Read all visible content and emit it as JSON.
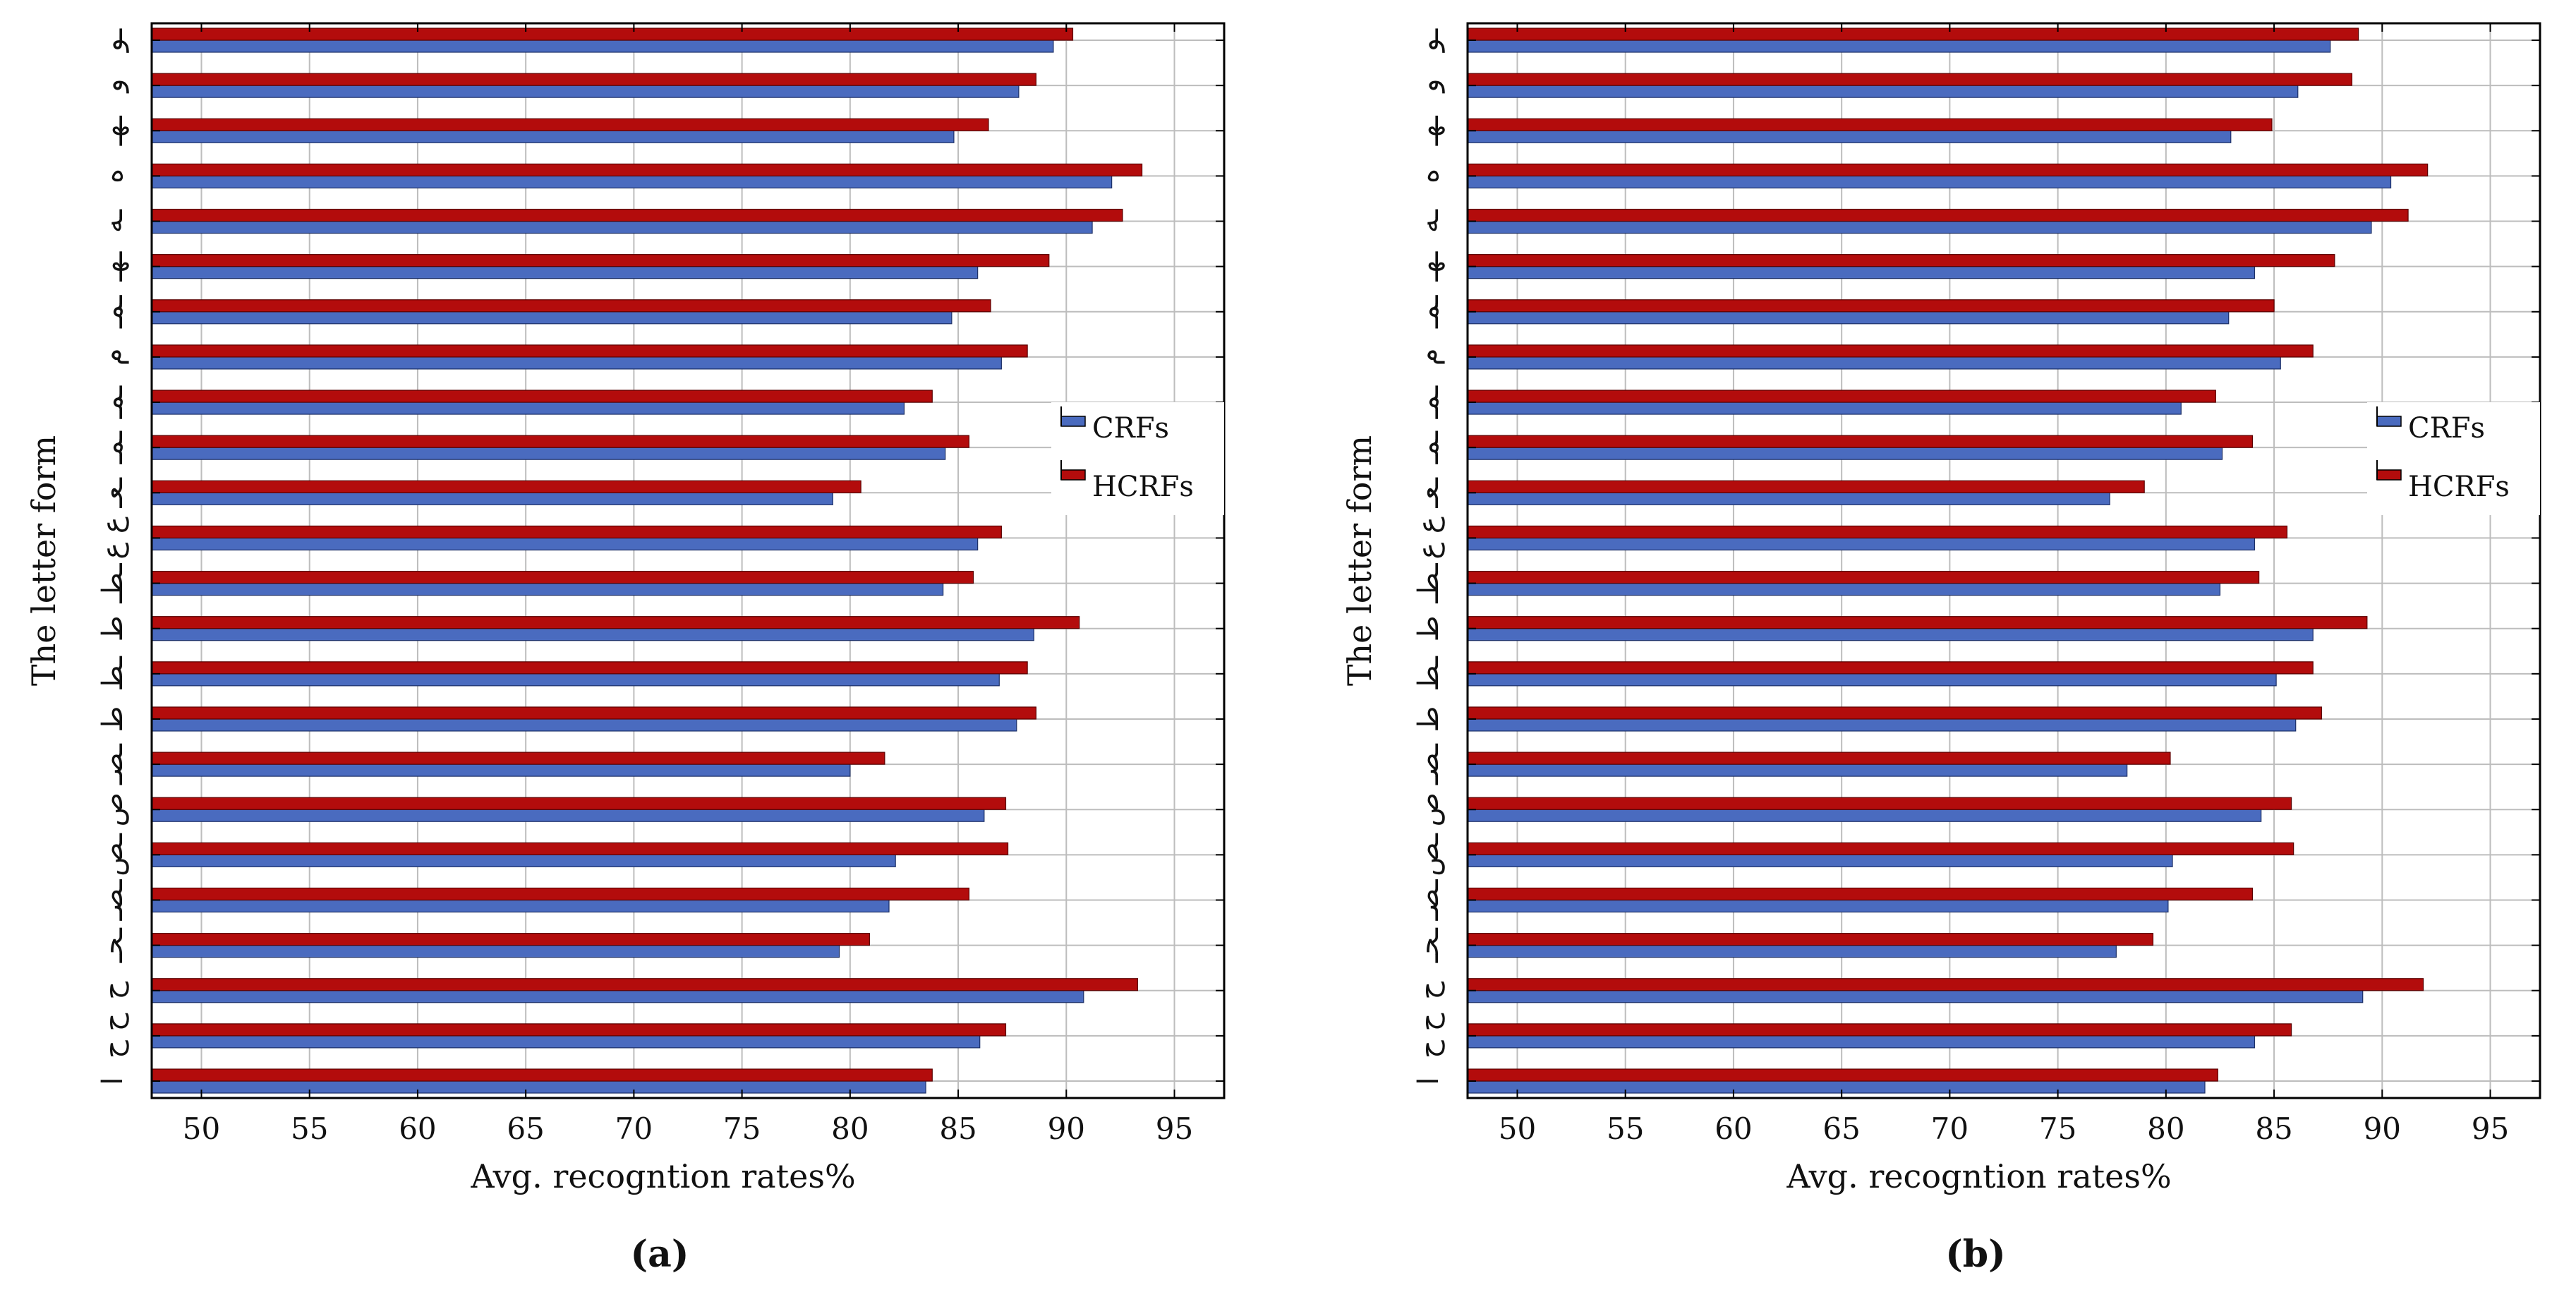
{
  "colors": {
    "crfs": "#4a6bbf",
    "hcrfs": "#b30c0c",
    "grid": "#bdbdbd",
    "axis": "#000000"
  },
  "chart_data": [
    {
      "type": "bar",
      "orientation": "horizontal",
      "panel_label": "(a)",
      "xlabel": "Avg. recogntion rates%",
      "ylabel": "The letter form",
      "xlim": [
        47.7,
        97.3
      ],
      "xticks": [
        50,
        55,
        60,
        65,
        70,
        75,
        80,
        85,
        90,
        95
      ],
      "grid": true,
      "legend_position": "right",
      "categories": [
        "ا",
        "ح ح",
        "ح",
        "ـحـ",
        "ـصـ",
        "ـص",
        "ص",
        "ـصـ",
        "ط",
        "ـط",
        "ط",
        "ـطـ",
        "ع ع",
        "ـعـ",
        "ـمـ",
        "ـمـ",
        "م",
        "ـمـ",
        "ـهـ",
        "ـه",
        "ه",
        "ـهـ",
        "و",
        "ـو"
      ],
      "series": [
        {
          "name": "CRFs",
          "values": [
            83.5,
            86.0,
            90.8,
            79.5,
            81.8,
            82.1,
            86.2,
            80.0,
            87.7,
            86.9,
            88.5,
            84.3,
            85.9,
            79.2,
            84.4,
            82.5,
            87.0,
            84.7,
            85.9,
            91.2,
            92.1,
            84.8,
            87.8,
            89.4
          ]
        },
        {
          "name": "HCRFs",
          "values": [
            83.8,
            87.2,
            93.3,
            80.9,
            85.5,
            87.3,
            87.2,
            81.6,
            88.6,
            88.2,
            90.6,
            85.7,
            87.0,
            80.5,
            85.5,
            83.8,
            88.2,
            86.5,
            89.2,
            92.6,
            93.5,
            86.4,
            88.6,
            90.3
          ]
        }
      ]
    },
    {
      "type": "bar",
      "orientation": "horizontal",
      "panel_label": "(b)",
      "xlabel": "Avg. recogntion rates%",
      "ylabel": "The letter form",
      "xlim": [
        47.7,
        97.3
      ],
      "xticks": [
        50,
        55,
        60,
        65,
        70,
        75,
        80,
        85,
        90,
        95
      ],
      "grid": true,
      "legend_position": "right",
      "categories": [
        "ا",
        "ح ح",
        "ح",
        "ـحـ",
        "ـصـ",
        "ـص",
        "ص",
        "ـصـ",
        "ط",
        "ـط",
        "ط",
        "ـطـ",
        "ع ع",
        "ـعـ",
        "ـمـ",
        "ـمـ",
        "م",
        "ـمـ",
        "ـهـ",
        "ـه",
        "ه",
        "ـهـ",
        "و",
        "ـو"
      ],
      "series": [
        {
          "name": "CRFs",
          "values": [
            81.8,
            84.1,
            89.1,
            77.7,
            80.1,
            80.3,
            84.4,
            78.2,
            86.0,
            85.1,
            86.8,
            82.5,
            84.1,
            77.4,
            82.6,
            80.7,
            85.3,
            82.9,
            84.1,
            89.5,
            90.4,
            83.0,
            86.1,
            87.6
          ]
        },
        {
          "name": "HCRFs",
          "values": [
            82.4,
            85.8,
            91.9,
            79.4,
            84.0,
            85.9,
            85.8,
            80.2,
            87.2,
            86.8,
            89.3,
            84.3,
            85.6,
            79.0,
            84.0,
            82.3,
            86.8,
            85.0,
            87.8,
            91.2,
            92.1,
            84.9,
            88.6,
            88.9
          ]
        }
      ]
    }
  ]
}
